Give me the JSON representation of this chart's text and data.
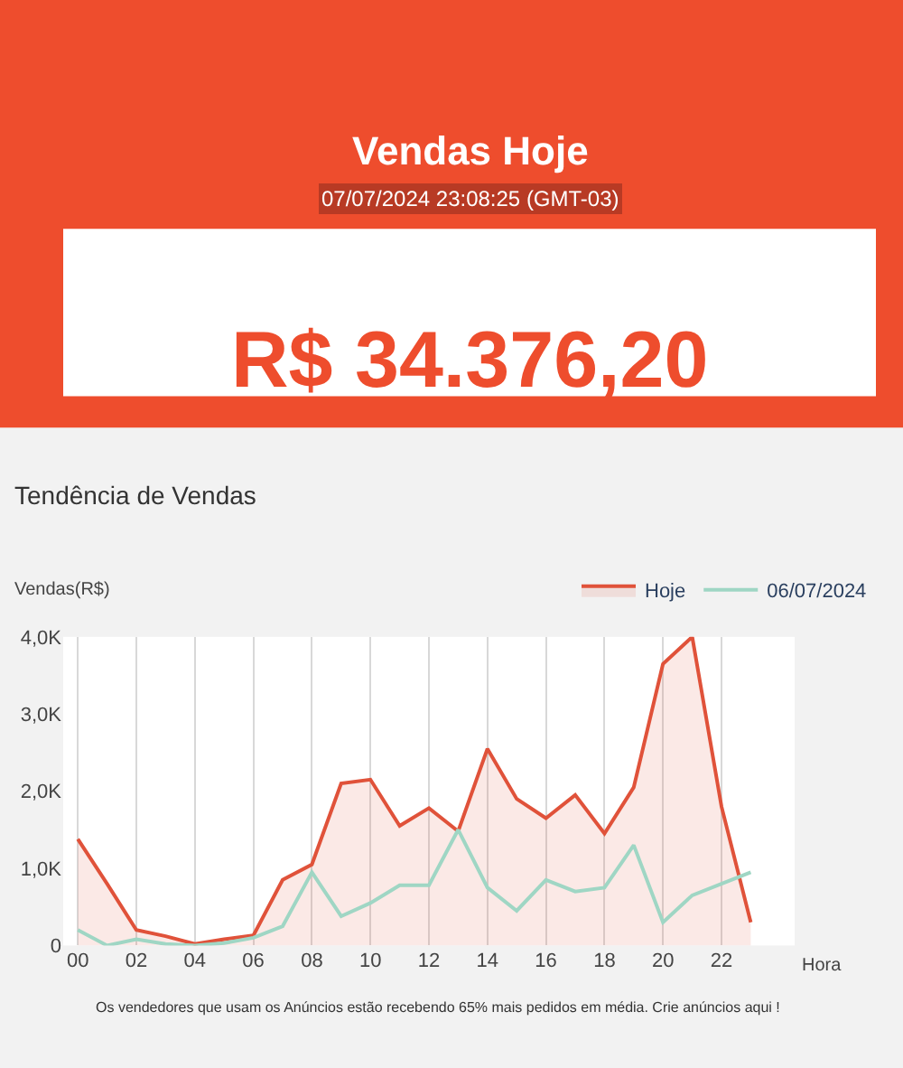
{
  "chart_data": [
    {
      "type": "other",
      "title": "Vendas Hoje",
      "subtitle": "07/07/2024 23:08:25 (GMT-03)",
      "annotations": [
        "R$ 34.376,20"
      ],
      "color": "#ee4d2d"
    },
    {
      "type": "line",
      "title": "Tendência de Vendas",
      "ylabel": "Vendas(R$)",
      "xlabel": "Hora",
      "categories": [
        "00",
        null,
        "02",
        null,
        "04",
        null,
        "06",
        null,
        "08",
        null,
        "10",
        null,
        "12",
        null,
        "14",
        null,
        "16",
        null,
        "18",
        null,
        "20",
        null,
        "22",
        null
      ],
      "series": [
        {
          "name": "Hoje",
          "type": "area",
          "color": "#e0523a",
          "values": [
            1380,
            800,
            200,
            120,
            20,
            80,
            130,
            850,
            1050,
            2100,
            2150,
            1550,
            1780,
            1480,
            2550,
            1900,
            1650,
            1950,
            1450,
            2050,
            3650,
            4000,
            1800,
            300
          ]
        },
        {
          "name": "06/07/2024",
          "type": "line",
          "color": "#9fd6c4",
          "values": [
            200,
            0,
            80,
            20,
            0,
            30,
            100,
            250,
            950,
            380,
            550,
            780,
            780,
            1500,
            750,
            450,
            850,
            700,
            750,
            1300,
            300,
            650,
            800,
            950
          ]
        }
      ],
      "ylim": [
        0,
        4000
      ],
      "yticks": [
        0,
        {
          "value": 1000,
          "label": "1,0K"
        },
        {
          "value": 2000,
          "label": "2,0K"
        },
        {
          "value": 3000,
          "label": "3,0K"
        },
        {
          "value": 4000,
          "label": "4,0K"
        }
      ],
      "grid": "x",
      "legend": "top right",
      "marker": "none",
      "line_style": "solid",
      "annotations": [
        "Os vendedores que usam os Anúncios estão recebendo 65% mais pedidos em média. Crie anúncios aqui !"
      ]
    }
  ]
}
